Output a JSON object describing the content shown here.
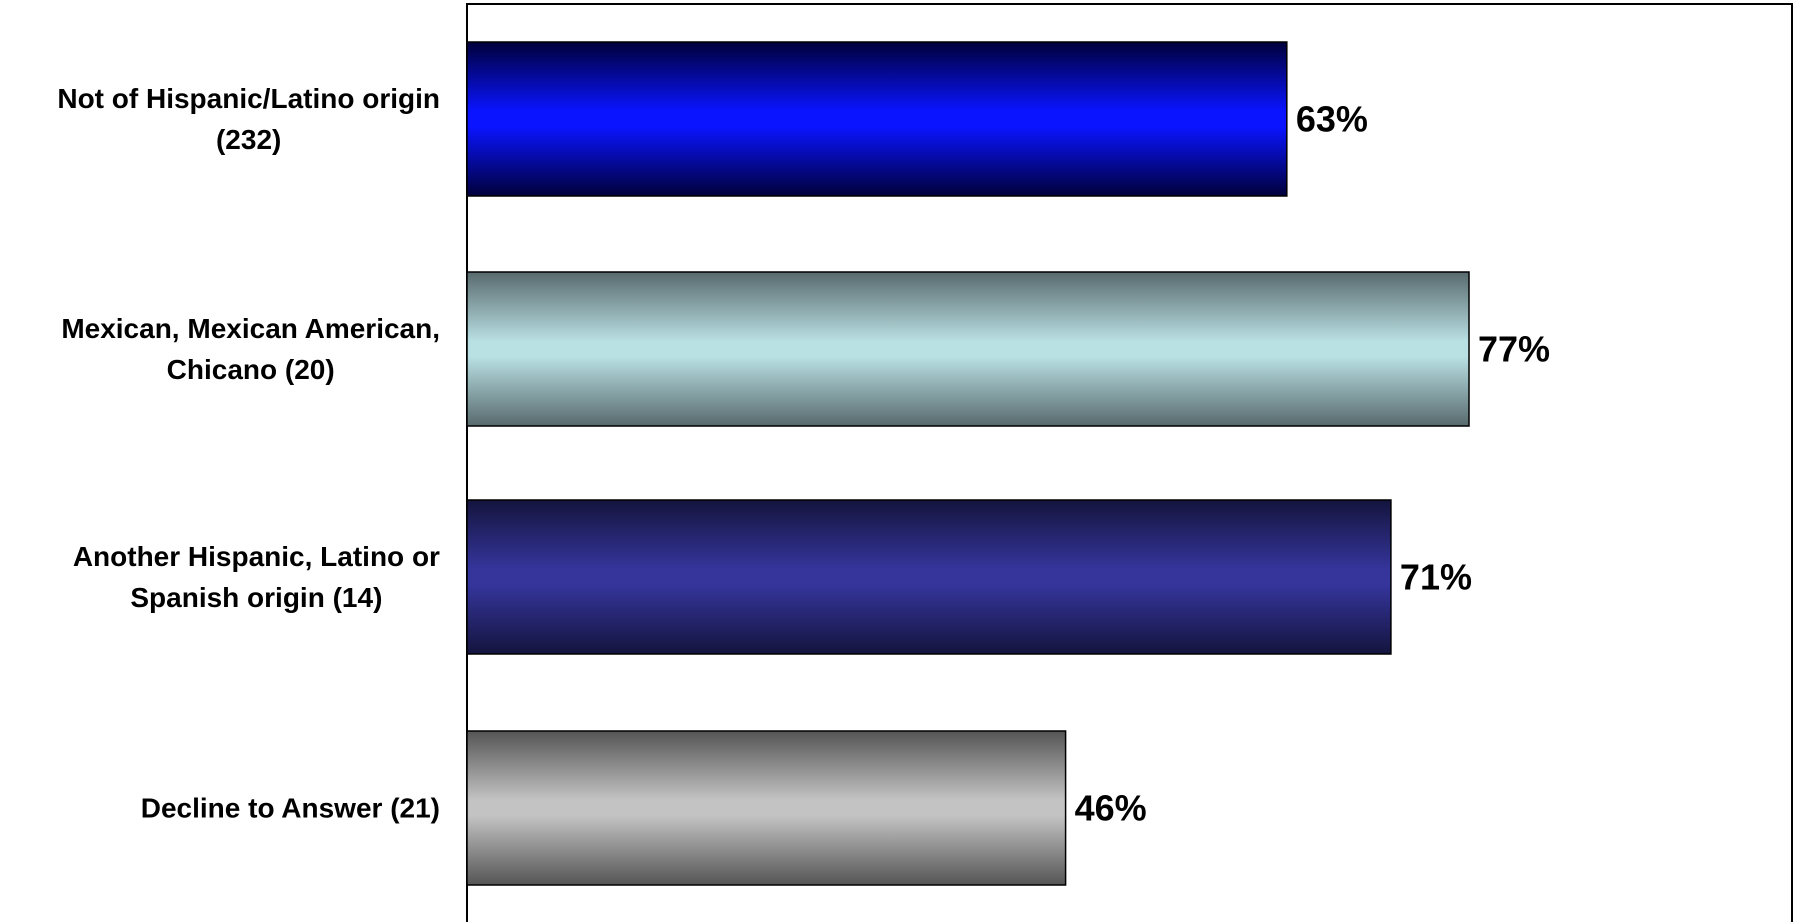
{
  "chart_data": {
    "type": "bar",
    "orientation": "horizontal",
    "categories": [
      [
        "Not of Hispanic/Latino origin",
        "(232)"
      ],
      [
        "Mexican, Mexican American,",
        "Chicano (20)"
      ],
      [
        "Another Hispanic, Latino or",
        "Spanish origin (14)"
      ],
      [
        "Decline to Answer (21)"
      ]
    ],
    "values": [
      63,
      77,
      71,
      46
    ],
    "value_labels": [
      "63%",
      "77%",
      "71%",
      "46%"
    ],
    "xlim": [
      0,
      100
    ],
    "grid": false,
    "legend": "none",
    "bar_colors": [
      {
        "edge": "#00003a",
        "mid": "#0a14ff"
      },
      {
        "edge": "#586a6e",
        "mid": "#b9e0e3"
      },
      {
        "edge": "#14143e",
        "mid": "#35359c"
      },
      {
        "edge": "#555555",
        "mid": "#c3c3c3"
      }
    ],
    "plot_border_color": "#000000"
  }
}
